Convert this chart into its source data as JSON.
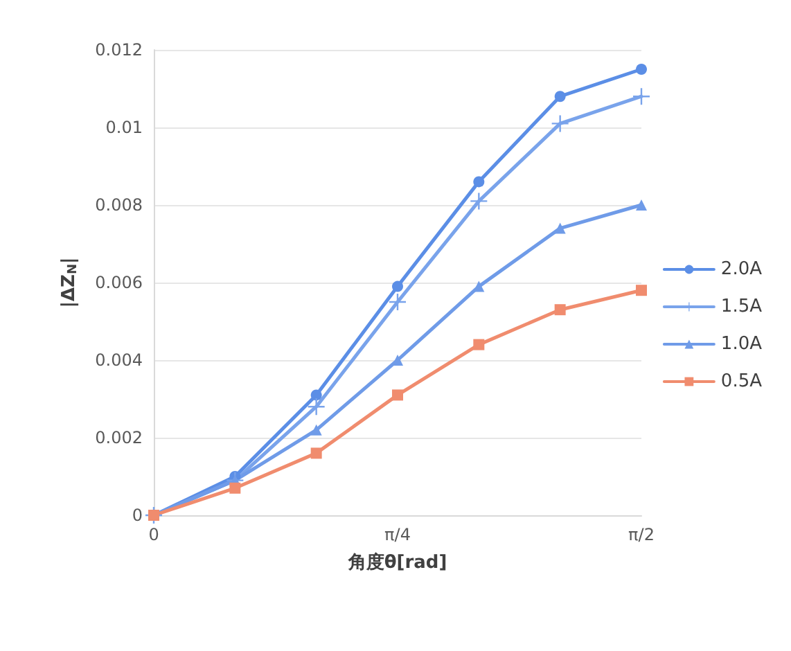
{
  "chart_data": {
    "type": "line",
    "xlabel": "角度θ[rad]",
    "ylabel": "|ΔZ$_{N}$|",
    "x": [
      0,
      0.2618,
      0.5236,
      0.7854,
      1.0472,
      1.309,
      1.5708
    ],
    "xlim": [
      0,
      1.5708
    ],
    "xticks": [
      0,
      {
        "value": 0.7854,
        "label": "π/4"
      },
      {
        "value": 1.5708,
        "label": "π/2"
      }
    ],
    "ylim": [
      0,
      0.012
    ],
    "yticks": [
      0,
      0.002,
      0.004,
      0.006,
      0.008,
      0.01,
      0.012
    ],
    "grid": "y",
    "legend": "right",
    "line_style": "solid",
    "series": [
      {
        "name": "2.0A",
        "color": "#5b8ee6",
        "marker": "circle",
        "values": [
          0,
          0.001,
          0.0031,
          0.0059,
          0.0086,
          0.0108,
          0.0115
        ]
      },
      {
        "name": "1.5A",
        "color": "#79a3eb",
        "marker": "cross",
        "values": [
          0,
          0.0009,
          0.0028,
          0.0055,
          0.0081,
          0.0101,
          0.0108
        ]
      },
      {
        "name": "1.0A",
        "color": "#6f9be8",
        "marker": "triangle",
        "values": [
          0,
          0.0009,
          0.0022,
          0.004,
          0.0059,
          0.0074,
          0.008
        ]
      },
      {
        "name": "0.5A",
        "color": "#f08c6e",
        "marker": "square",
        "values": [
          0,
          0.0007,
          0.0016,
          0.0031,
          0.0044,
          0.0053,
          0.0058
        ]
      }
    ]
  }
}
